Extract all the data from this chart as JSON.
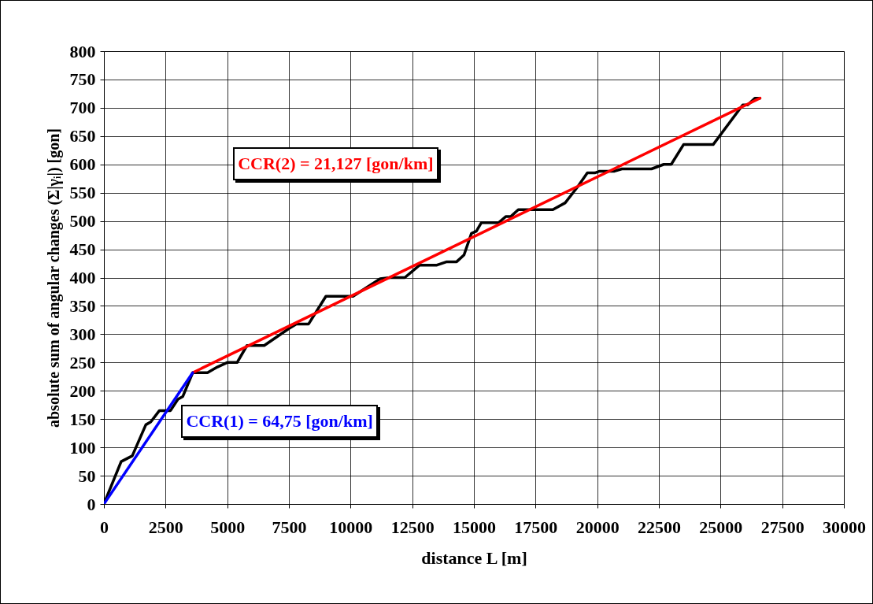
{
  "chart_data": {
    "type": "line",
    "xlabel": "distance L [m]",
    "ylabel": "absolute sum of angular changes (Σ|γᵢ|) [gon]",
    "xlim": [
      0,
      30000
    ],
    "xticks": [
      0,
      2500,
      5000,
      7500,
      10000,
      12500,
      15000,
      17500,
      20000,
      22500,
      25000,
      27500,
      30000
    ],
    "ylim": [
      0,
      800
    ],
    "yticks": [
      0,
      50,
      100,
      150,
      200,
      250,
      300,
      350,
      400,
      450,
      500,
      550,
      600,
      650,
      700,
      750,
      800
    ],
    "grid": true,
    "marker": "none",
    "line_style": "solid",
    "series": [
      {
        "color": "#000000",
        "x": [
          0,
          700,
          1150,
          1700,
          1900,
          2250,
          2700,
          3000,
          3200,
          3600,
          4200,
          4600,
          5000,
          5400,
          5800,
          6500,
          7500,
          7800,
          8300,
          9000,
          10100,
          11200,
          11600,
          12200,
          12800,
          13500,
          13900,
          14300,
          14600,
          14900,
          15100,
          15300,
          16000,
          16300,
          16500,
          16800,
          18200,
          18700,
          19200,
          19600,
          19900,
          20100,
          20700,
          21000,
          22200,
          22700,
          23000,
          23500,
          24700,
          25900,
          26100,
          26400,
          26600
        ],
        "values": [
          0,
          75,
          85,
          140,
          145,
          165,
          165,
          185,
          190,
          232,
          232,
          242,
          250,
          250,
          280,
          280,
          310,
          318,
          318,
          367,
          367,
          398,
          400,
          400,
          422,
          422,
          428,
          428,
          440,
          478,
          482,
          497,
          497,
          508,
          508,
          520,
          520,
          532,
          560,
          585,
          585,
          588,
          588,
          592,
          592,
          600,
          600,
          635,
          635,
          705,
          705,
          717,
          717
        ]
      },
      {
        "name": "CCR(2) = 21,127 [gon/km]",
        "color": "#ff0000",
        "x": [
          3600,
          26600
        ],
        "values": [
          232,
          717
        ]
      },
      {
        "name": "CCR(1) = 64,75 [gon/km]",
        "color": "#0000ff",
        "x": [
          0,
          3600
        ],
        "values": [
          0,
          232
        ]
      }
    ]
  }
}
